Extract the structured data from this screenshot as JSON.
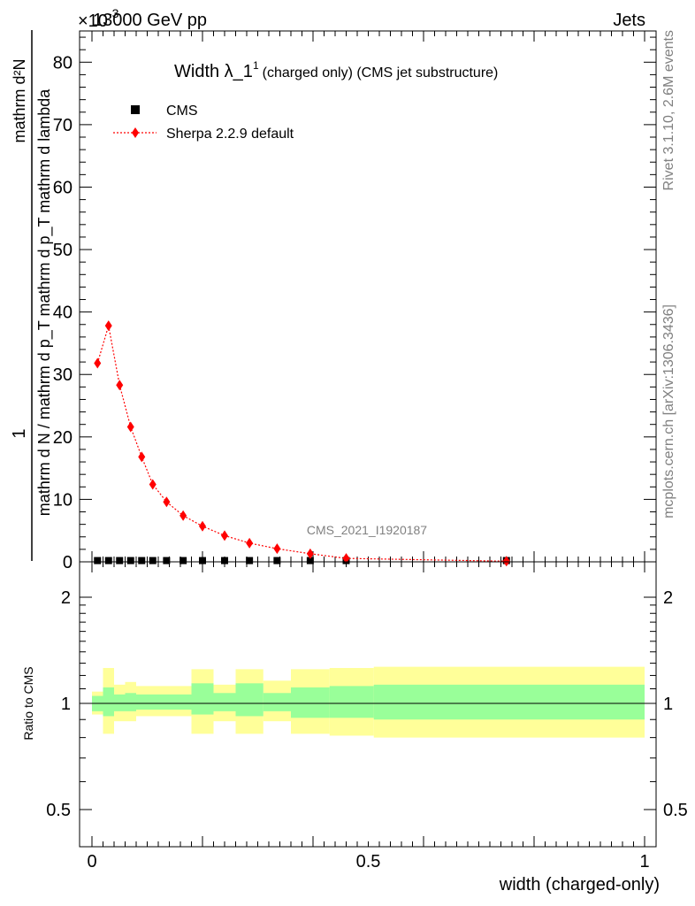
{
  "header": {
    "energy": "13000 GeV pp",
    "category": "Jets",
    "exponent": "×10^-3"
  },
  "side": {
    "rivet": "Rivet 3.1.10,  2.6M events",
    "mcplots": "mcplots.cern.ch [arXiv:1306.3436]"
  },
  "watermark": "CMS_2021_I1920187",
  "chart_data": [
    {
      "type": "line",
      "title_main": "Width λ_1",
      "title_sup": "1",
      "title_rest": "(charged only) (CMS jet substructure)",
      "ylabel_num": "1",
      "ylabel_den": "mathrm d N / mathrm d p_T mathrm d p_T mathrm d lambda",
      "ylabel_top": "mathrm d²N",
      "xlim": [
        0,
        1
      ],
      "ylim": [
        0,
        85
      ],
      "yticks": [
        0,
        10,
        20,
        30,
        40,
        50,
        60,
        70,
        80
      ],
      "legend_placement": "top-left",
      "series": [
        {
          "name": "CMS",
          "marker": "square",
          "color": "#000000",
          "x": [
            0.01,
            0.03,
            0.05,
            0.07,
            0.09,
            0.11,
            0.135,
            0.165,
            0.2,
            0.24,
            0.285,
            0.335,
            0.395,
            0.46,
            0.75
          ],
          "y": [
            0.2,
            0.2,
            0.2,
            0.2,
            0.2,
            0.2,
            0.2,
            0.2,
            0.2,
            0.2,
            0.2,
            0.2,
            0.2,
            0.2,
            0.2
          ]
        },
        {
          "name": "Sherpa 2.2.9 default",
          "marker": "diamond",
          "color": "#ff0000",
          "x": [
            0.01,
            0.03,
            0.05,
            0.07,
            0.09,
            0.11,
            0.135,
            0.165,
            0.2,
            0.24,
            0.285,
            0.335,
            0.395,
            0.46,
            0.75
          ],
          "y": [
            31.8,
            37.8,
            28.3,
            21.6,
            16.8,
            12.4,
            9.6,
            7.4,
            5.7,
            4.2,
            3.0,
            2.1,
            1.3,
            0.55,
            0.1
          ]
        }
      ]
    },
    {
      "type": "area",
      "ylabel": "Ratio to CMS",
      "xlabel": "width (charged-only)",
      "xlim": [
        0,
        1
      ],
      "xticks": [
        "0",
        "0.5",
        "1"
      ],
      "ylim": [
        0.4,
        2.3
      ],
      "yticks": [
        "0.5",
        "1",
        "2"
      ],
      "bins": [
        {
          "lo": 0.0,
          "hi": 0.02,
          "in": [
            0.95,
            1.05
          ],
          "out": [
            0.93,
            1.08
          ]
        },
        {
          "lo": 0.02,
          "hi": 0.04,
          "in": [
            0.92,
            1.11
          ],
          "out": [
            0.82,
            1.26
          ]
        },
        {
          "lo": 0.04,
          "hi": 0.06,
          "in": [
            0.95,
            1.06
          ],
          "out": [
            0.89,
            1.13
          ]
        },
        {
          "lo": 0.06,
          "hi": 0.08,
          "in": [
            0.95,
            1.07
          ],
          "out": [
            0.89,
            1.15
          ]
        },
        {
          "lo": 0.08,
          "hi": 0.18,
          "in": [
            0.96,
            1.06
          ],
          "out": [
            0.92,
            1.12
          ]
        },
        {
          "lo": 0.18,
          "hi": 0.22,
          "in": [
            0.93,
            1.14
          ],
          "out": [
            0.82,
            1.25
          ]
        },
        {
          "lo": 0.22,
          "hi": 0.26,
          "in": [
            0.95,
            1.07
          ],
          "out": [
            0.89,
            1.13
          ]
        },
        {
          "lo": 0.26,
          "hi": 0.31,
          "in": [
            0.92,
            1.14
          ],
          "out": [
            0.82,
            1.25
          ]
        },
        {
          "lo": 0.31,
          "hi": 0.36,
          "in": [
            0.95,
            1.07
          ],
          "out": [
            0.89,
            1.16
          ]
        },
        {
          "lo": 0.36,
          "hi": 0.43,
          "in": [
            0.91,
            1.11
          ],
          "out": [
            0.82,
            1.25
          ]
        },
        {
          "lo": 0.43,
          "hi": 0.51,
          "in": [
            0.91,
            1.12
          ],
          "out": [
            0.81,
            1.26
          ]
        },
        {
          "lo": 0.51,
          "hi": 1.0,
          "in": [
            0.9,
            1.13
          ],
          "out": [
            0.8,
            1.27
          ]
        }
      ]
    }
  ]
}
